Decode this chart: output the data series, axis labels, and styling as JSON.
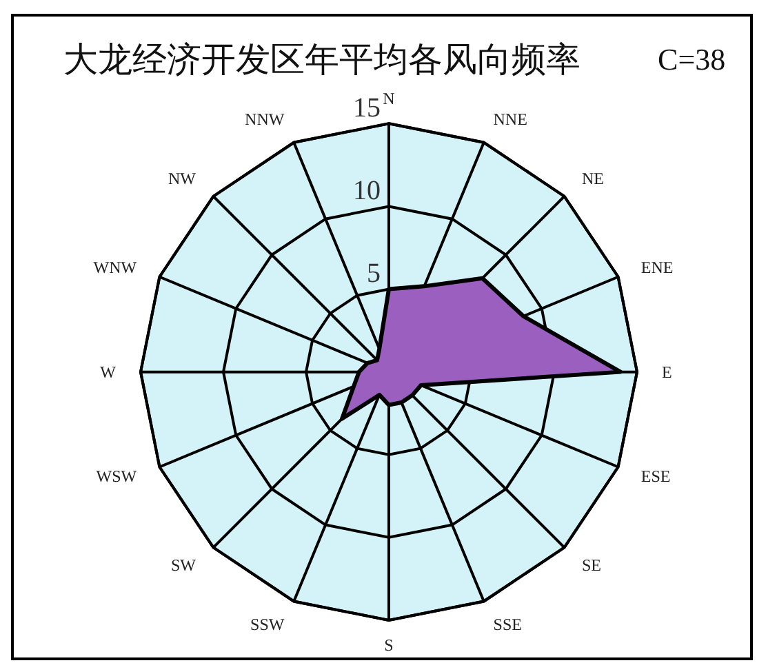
{
  "chart_data": {
    "type": "radar",
    "title": "大龙经济开发区年平均各风向频率",
    "annotations": [
      "C=38"
    ],
    "categories": [
      "N",
      "NNE",
      "NE",
      "ENE",
      "E",
      "ESE",
      "SE",
      "SSE",
      "S",
      "SSW",
      "SW",
      "WSW",
      "W",
      "WNW",
      "NW",
      "NNW"
    ],
    "series": [
      {
        "color": "#9b5fc0",
        "values": [
          5,
          5.6,
          8,
          8.8,
          14,
          2.1,
          2,
          2,
          2,
          1.5,
          4,
          2.3,
          1.8,
          1.4,
          1,
          1.5
        ]
      }
    ],
    "ylim": [
      0,
      15
    ],
    "yticks": [
      5,
      10,
      15
    ],
    "grid": true
  }
}
